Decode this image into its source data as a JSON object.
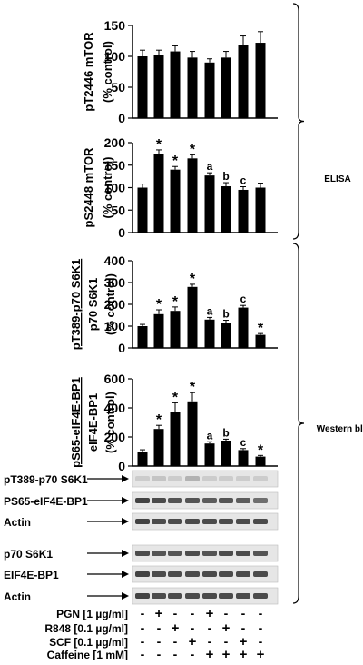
{
  "chart_data": [
    {
      "type": "bar",
      "ylabel_lines": [
        "pT2446 mTOR",
        "(% control)"
      ],
      "ylim": [
        0,
        150
      ],
      "yticks": [
        0,
        50,
        100,
        150
      ],
      "values": [
        100,
        102,
        108,
        98,
        90,
        98,
        118,
        122
      ],
      "errors": [
        10,
        8,
        9,
        10,
        6,
        10,
        15,
        18
      ],
      "annotations": [
        "",
        "",
        "",
        "",
        "",
        "",
        "",
        ""
      ]
    },
    {
      "type": "bar",
      "ylabel_lines": [
        "pS2448 mTOR",
        "(% control)"
      ],
      "ylim": [
        0,
        200
      ],
      "yticks": [
        0,
        50,
        100,
        150,
        200
      ],
      "values": [
        100,
        175,
        140,
        165,
        127,
        103,
        95,
        100
      ],
      "errors": [
        8,
        9,
        7,
        8,
        6,
        8,
        7,
        10
      ],
      "annotations": [
        "",
        "*",
        "*",
        "*",
        "a",
        "b",
        "c",
        ""
      ]
    },
    {
      "type": "bar",
      "ylabel_lines": [
        "pT389-p70 S6K1",
        "p70 S6K1",
        "(% control)"
      ],
      "ylim": [
        0,
        400
      ],
      "yticks": [
        0,
        100,
        200,
        300,
        400
      ],
      "values": [
        100,
        155,
        170,
        280,
        130,
        115,
        185,
        60
      ],
      "errors": [
        8,
        20,
        18,
        12,
        10,
        12,
        10,
        6
      ],
      "annotations": [
        "",
        "*",
        "*",
        "*",
        "a",
        "b",
        "c",
        "*"
      ]
    },
    {
      "type": "bar",
      "ylabel_lines": [
        "pS65-eIF4E-BP1",
        "eIF4E-BP1",
        "(% control)"
      ],
      "ylim": [
        0,
        600
      ],
      "yticks": [
        0,
        200,
        400,
        600
      ],
      "values": [
        100,
        255,
        375,
        445,
        155,
        175,
        110,
        65
      ],
      "errors": [
        12,
        25,
        60,
        60,
        12,
        10,
        10,
        8
      ],
      "annotations": [
        "",
        "*",
        "*",
        "*",
        "a",
        "b",
        "c",
        "*"
      ]
    }
  ],
  "brackets": [
    {
      "label": "ELISA"
    },
    {
      "label": "Western blot"
    }
  ],
  "blots": {
    "group1": [
      "pT389-p70 S6K1",
      "PS65-eIF4E-BP1",
      "Actin"
    ],
    "group2": [
      "p70 S6K1",
      "EIF4E-BP1",
      "Actin"
    ]
  },
  "treatments": [
    {
      "label": "PGN [1 µg/ml]",
      "signs": [
        "-",
        "+",
        "-",
        "-",
        "+",
        "-",
        "-",
        "-"
      ]
    },
    {
      "label": "R848 [0.1 µg/ml]",
      "signs": [
        "-",
        "-",
        "+",
        "-",
        "-",
        "+",
        "-",
        "-"
      ]
    },
    {
      "label": "SCF [0.1 µg/ml]",
      "signs": [
        "-",
        "-",
        "-",
        "+",
        "-",
        "-",
        "+",
        "-"
      ]
    },
    {
      "label": "Caffeine [1 mM]",
      "signs": [
        "-",
        "-",
        "-",
        "-",
        "+",
        "+",
        "+",
        "+"
      ]
    }
  ],
  "colors": {
    "bar": "#000000",
    "axis": "#000000",
    "blot_bg": "#e6e6e6",
    "band": "#3a3a3a"
  }
}
